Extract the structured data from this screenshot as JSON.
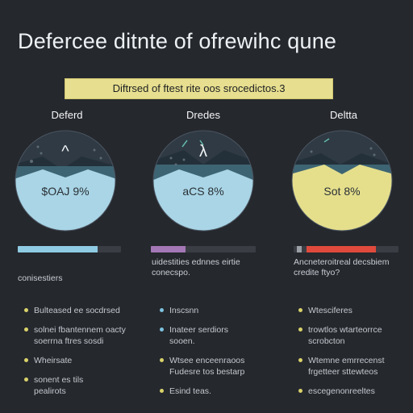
{
  "header": {
    "title": "Defercee ditnte of ofrewihc qune"
  },
  "banner": {
    "text": "Diftrsed of ftest rite oos srocedictos.3"
  },
  "columns": [
    {
      "title": "Deferd",
      "value": "$OAJ 9%",
      "caret": "^",
      "fill_color": "#a9d5e6",
      "progress": 0.77,
      "bar_color": "#8fcbe3",
      "caption": "conisestiers",
      "bullets": [
        {
          "line1": "Bulteased ee socdrsed",
          "line2": "",
          "dot": "#d9d26a"
        },
        {
          "line1": "solnei fbantennem oacty",
          "line2": "soerrna ftres sosdi",
          "dot": "#d9d26a"
        },
        {
          "line1": "Wheirsate",
          "line2": "",
          "dot": "#d9d26a"
        },
        {
          "line1": "sonent es tils",
          "line2": "pealirots",
          "dot": "#d9d26a"
        }
      ]
    },
    {
      "title": "Dredes",
      "value": "aCS 8%",
      "caret": "λ",
      "fill_color": "#a9d5e6",
      "progress": 0.33,
      "bar_color": "#a477b6",
      "caption": "uidestities ednnes eirtie\nconecspo.",
      "bullets": [
        {
          "line1": "Inscsnn",
          "line2": "",
          "dot": "#7cc2de"
        },
        {
          "line1": "Inateer serdiors",
          "line2": "sooen.",
          "dot": "#7cc2de"
        },
        {
          "line1": "Wtsee enceenraoos",
          "line2": "Fudesre tos bestarp",
          "dot": "#d9d26a"
        },
        {
          "line1": "Esind teas.",
          "line2": "",
          "dot": "#d9d26a"
        }
      ]
    },
    {
      "title": "Deltta",
      "value": "Sot 8%",
      "caret": "",
      "fill_color": "#e5df8c",
      "progress": 0.75,
      "bar_color": "#e04a3c",
      "bar_lead": "#9aa0a6",
      "caption": "Ancneteroitreal decsbiem\ncredite ftyo?",
      "bullets": [
        {
          "line1": "Wtesciferes",
          "line2": "",
          "dot": "#d9d26a"
        },
        {
          "line1": "trowtlos wtarteorrce",
          "line2": "scrobcton",
          "dot": "#d9d26a"
        },
        {
          "line1": "Wtemne emrrecenst",
          "line2": "frgetteer sttewteos",
          "dot": "#d9d26a"
        },
        {
          "line1": "escegenonreeltes",
          "line2": "",
          "dot": "#d9d26a"
        }
      ]
    }
  ],
  "colors": {
    "background": "#25282d",
    "gauge_dark": "#2f3a44",
    "gauge_band": "#3d6473",
    "banner": "#e7df8f"
  }
}
